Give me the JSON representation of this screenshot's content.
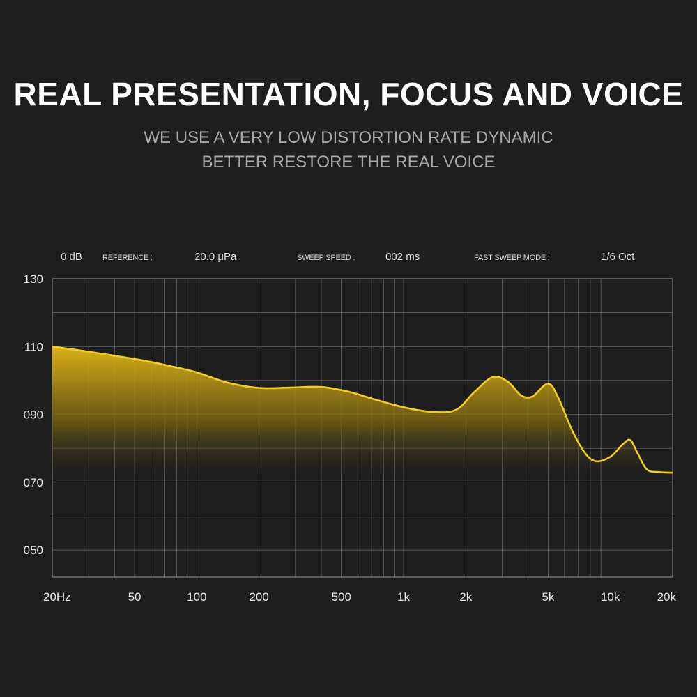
{
  "header": {
    "title": "REAL PRESENTATION, FOCUS AND VOICE",
    "subtitle_line1": "WE USE A VERY LOW DISTORTION RATE DYNAMIC",
    "subtitle_line2": "BETTER RESTORE THE REAL VOICE"
  },
  "meta": {
    "db": "0  dB",
    "reference_label": "REFERENCE :",
    "reference_value": "20.0  μPa",
    "sweep_speed_label": "SWEEP SPEED :",
    "sweep_speed_value": "002  ms",
    "sweep_mode_label": "FAST SWEEP MODE :",
    "sweep_mode_value": "1/6  Oct"
  },
  "colors": {
    "background": "#1e1e1f",
    "grid": "#8a8a8a",
    "curve": "#f2cf1f",
    "fill_top": "#e0b617"
  },
  "chart_data": {
    "type": "area",
    "title": "",
    "xlabel": "",
    "ylabel": "",
    "x_scale": "log",
    "xlim": [
      20,
      20000
    ],
    "ylim": [
      42,
      130
    ],
    "grid": true,
    "y_ticks": [
      {
        "value": 130,
        "label": "130"
      },
      {
        "value": 110,
        "label": "110"
      },
      {
        "value": 90,
        "label": "090"
      },
      {
        "value": 70,
        "label": "070"
      },
      {
        "value": 50,
        "label": "050"
      }
    ],
    "x_ticks": [
      {
        "value": 20,
        "label": "20Hz"
      },
      {
        "value": 50,
        "label": "50"
      },
      {
        "value": 100,
        "label": "100"
      },
      {
        "value": 200,
        "label": "200"
      },
      {
        "value": 500,
        "label": "500"
      },
      {
        "value": 1000,
        "label": "1k"
      },
      {
        "value": 2000,
        "label": "2k"
      },
      {
        "value": 5000,
        "label": "5k"
      },
      {
        "value": 10000,
        "label": "10k"
      },
      {
        "value": 20000,
        "label": "20k"
      }
    ],
    "series": [
      {
        "x": [
          20,
          30,
          40,
          55,
          70,
          100,
          140,
          200,
          280,
          400,
          550,
          700,
          1000,
          1400,
          1800,
          2200,
          2700,
          3200,
          3700,
          4200,
          5000,
          5600,
          6500,
          7500,
          8500,
          10000,
          11500,
          12500,
          13500,
          15000,
          17000,
          20000
        ],
        "y": [
          110,
          108.5,
          107.3,
          105.9,
          104.6,
          102.4,
          99.4,
          97.8,
          97.9,
          98.1,
          96.6,
          94.7,
          92.1,
          90.7,
          91.4,
          96.6,
          101.0,
          99.6,
          95.6,
          95.3,
          99.1,
          94.9,
          85.6,
          78.8,
          76.2,
          77.5,
          81.2,
          82.4,
          78.7,
          73.8,
          73.0,
          72.8
        ]
      }
    ]
  }
}
